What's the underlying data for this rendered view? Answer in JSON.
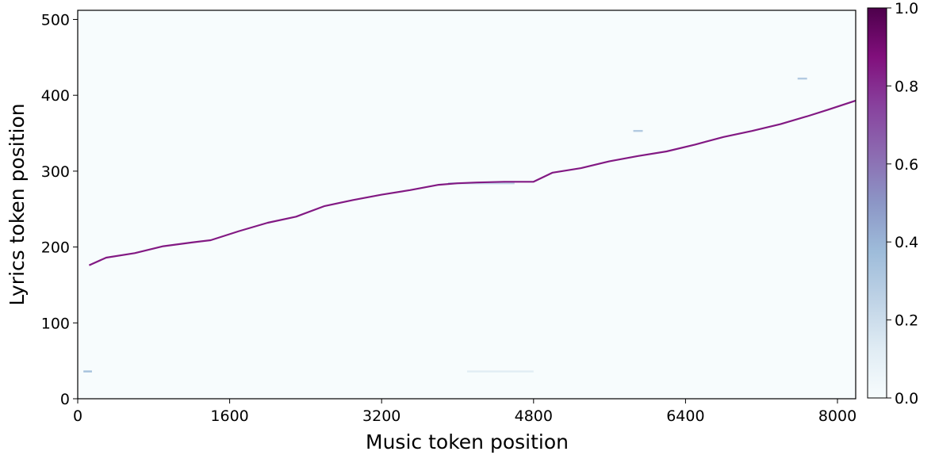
{
  "chart_data": {
    "type": "heatmap",
    "title": "",
    "xlabel": "Music token position",
    "ylabel": "Lyrics token position",
    "xlim": [
      0,
      8192
    ],
    "ylim": [
      0,
      512
    ],
    "x_ticks": [
      "0",
      "1600",
      "3200",
      "4800",
      "6400",
      "8000"
    ],
    "y_ticks": [
      "0",
      "100",
      "200",
      "300",
      "400",
      "500"
    ],
    "colorbar": {
      "range": [
        0,
        1
      ],
      "ticks": [
        "0.0",
        "0.2",
        "0.4",
        "0.6",
        "0.8",
        "1.0"
      ],
      "colormap": "BuPu",
      "colors": [
        "#f7fcfd",
        "#e0ecf4",
        "#bfd3e6",
        "#9ebcda",
        "#8c96c6",
        "#8c6bb1",
        "#88419d",
        "#810f7c",
        "#4d004b"
      ]
    },
    "background_value": 0.02,
    "alignment_path": {
      "intensity": 0.85,
      "x": [
        120,
        300,
        600,
        900,
        1200,
        1400,
        1700,
        2000,
        2300,
        2600,
        2900,
        3200,
        3500,
        3800,
        4000,
        4200,
        4500,
        4800,
        5000,
        5300,
        5600,
        5900,
        6200,
        6500,
        6800,
        7100,
        7400,
        7700,
        7900,
        8192
      ],
      "y": [
        176,
        186,
        192,
        201,
        206,
        209,
        221,
        232,
        240,
        254,
        262,
        269,
        275,
        282,
        284,
        285,
        286,
        286,
        298,
        304,
        313,
        320,
        326,
        335,
        345,
        353,
        362,
        373,
        381,
        393
      ]
    },
    "faint_marks": [
      {
        "x": [
          60,
          150
        ],
        "y": 36,
        "value": 0.35
      },
      {
        "x": [
          4100,
          4800
        ],
        "y": 36,
        "value": 0.12
      },
      {
        "x": [
          7580,
          7680
        ],
        "y": 422,
        "value": 0.3
      },
      {
        "x": [
          5850,
          5950
        ],
        "y": 353,
        "value": 0.3
      },
      {
        "x": [
          3900,
          4600
        ],
        "y": 284,
        "value": 0.25
      }
    ]
  }
}
